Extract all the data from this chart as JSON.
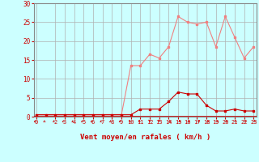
{
  "x": [
    0,
    1,
    2,
    3,
    4,
    5,
    6,
    7,
    8,
    9,
    10,
    11,
    12,
    13,
    14,
    15,
    16,
    17,
    18,
    19,
    20,
    21,
    22,
    23
  ],
  "rafales": [
    0.5,
    0.5,
    0.5,
    0.5,
    0.5,
    0.5,
    0.5,
    0.5,
    0.5,
    0.5,
    13.5,
    13.5,
    16.5,
    15.5,
    18.5,
    26.5,
    25.0,
    24.5,
    25.0,
    18.5,
    26.5,
    21.0,
    15.5,
    18.5
  ],
  "moyen": [
    0.5,
    0.5,
    0.5,
    0.5,
    0.5,
    0.5,
    0.5,
    0.5,
    0.5,
    0.5,
    0.5,
    2.0,
    2.0,
    2.0,
    4.0,
    6.5,
    6.0,
    6.0,
    3.0,
    1.5,
    1.5,
    2.0,
    1.5,
    1.5
  ],
  "color_rafales": "#f08080",
  "color_moyen": "#cc0000",
  "bg_color": "#ccffff",
  "grid_color": "#b0b0b0",
  "xlabel": "Vent moyen/en rafales ( km/h )",
  "ylim": [
    0,
    30
  ],
  "xlim": [
    0,
    23
  ],
  "yticks": [
    0,
    5,
    10,
    15,
    20,
    25,
    30
  ],
  "xticks": [
    0,
    2,
    3,
    4,
    5,
    6,
    7,
    8,
    9,
    10,
    11,
    12,
    13,
    14,
    15,
    16,
    17,
    18,
    19,
    20,
    21,
    22,
    23
  ],
  "marker": "s",
  "markersize": 2.0,
  "linewidth": 0.8,
  "tick_fontsize": 5.0,
  "xlabel_fontsize": 6.5
}
